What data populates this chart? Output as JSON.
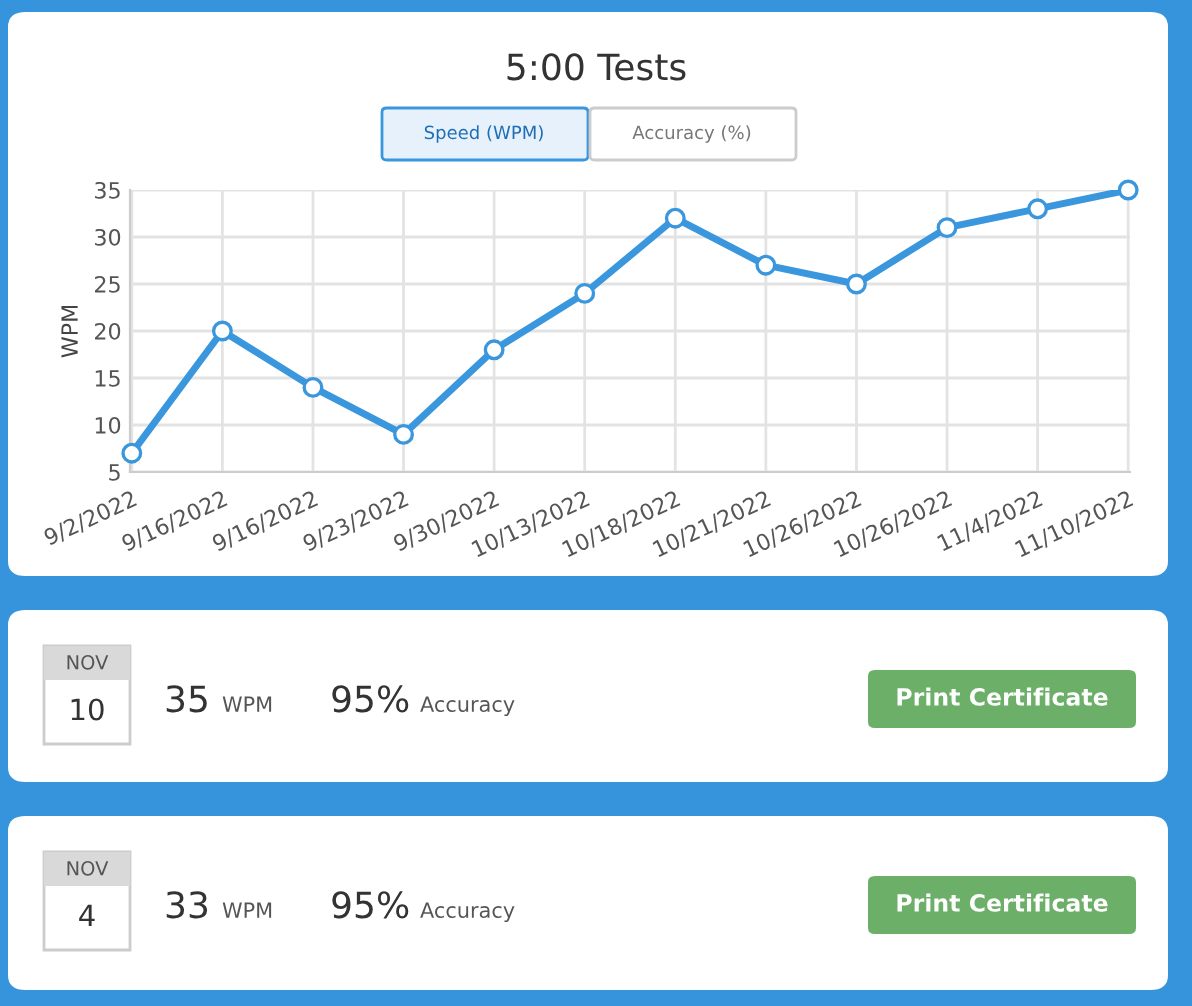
{
  "chart_data": {
    "type": "line",
    "title": "5:00 Tests",
    "ylabel": "WPM",
    "categories": [
      "9/2/2022",
      "9/16/2022",
      "9/16/2022",
      "9/23/2022",
      "9/30/2022",
      "10/13/2022",
      "10/18/2022",
      "10/21/2022",
      "10/26/2022",
      "10/26/2022",
      "11/4/2022",
      "11/10/2022"
    ],
    "series": [
      {
        "color": "#3a97dd",
        "values": [
          7,
          20,
          14,
          9,
          18,
          24,
          32,
          27,
          25,
          31,
          33,
          35
        ]
      }
    ],
    "ylim": [
      5,
      35
    ],
    "yticks": [
      5,
      10,
      15,
      20,
      25,
      30,
      35
    ],
    "grid": true,
    "marker": "circle",
    "line_style": "solid",
    "annotations": [
      "Speed (WPM)",
      "Accuracy (%)",
      "NOV",
      "10",
      "35",
      "WPM",
      "95%",
      "Accuracy",
      "Print Certificate",
      "NOV",
      "4",
      "33",
      "WPM",
      "95%",
      "Accuracy",
      "Print Certificate"
    ]
  }
}
